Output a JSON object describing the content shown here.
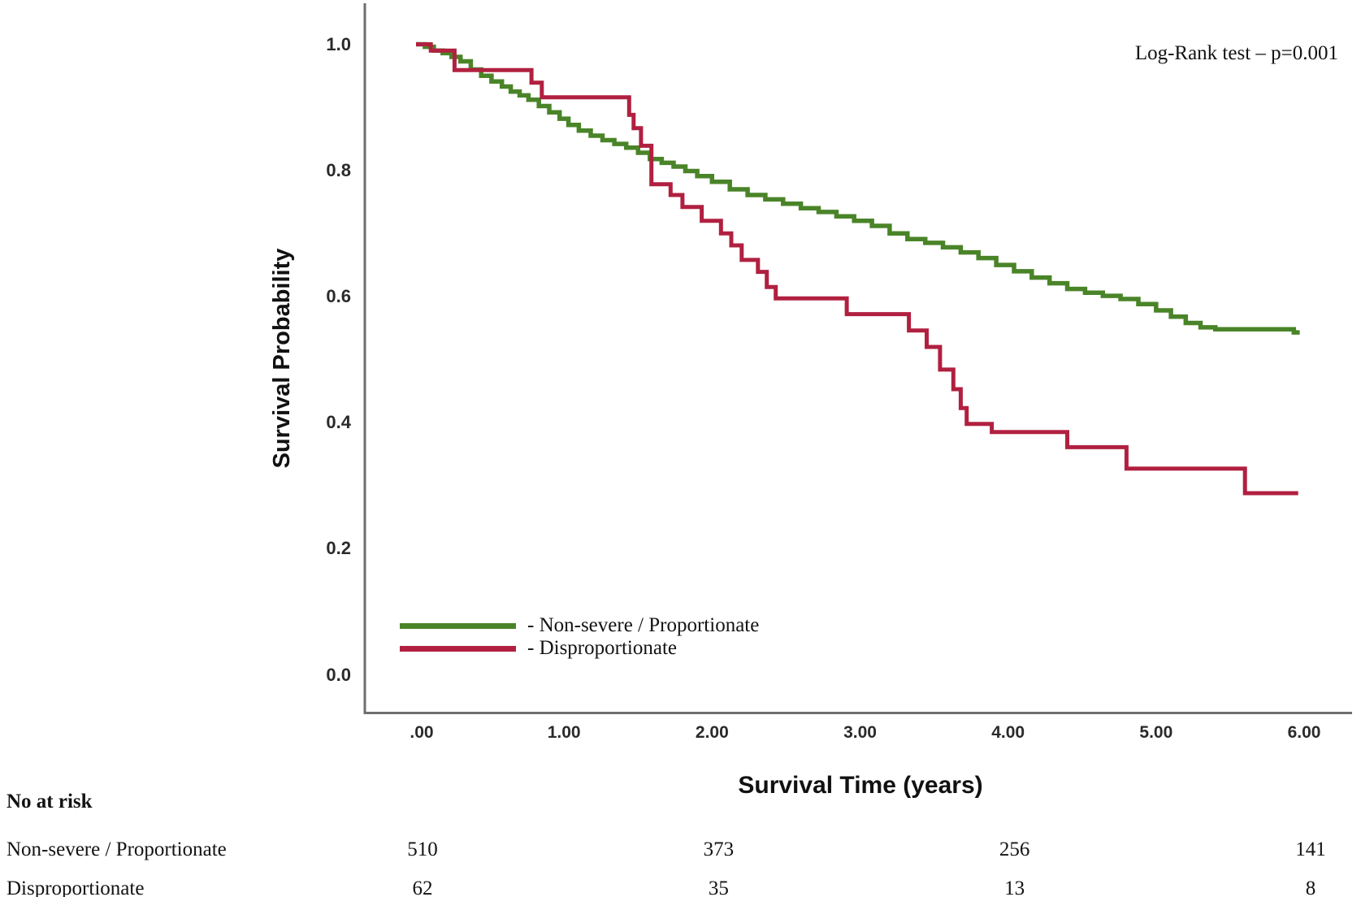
{
  "chart_data": {
    "type": "line",
    "subtype": "kaplan-meier-step",
    "title": "",
    "xlabel": "Survival Time (years)",
    "ylabel": "Survival Probability",
    "annotation": "Log-Rank test – p=0.001",
    "xlim": [
      0,
      6.35
    ],
    "ylim": [
      0,
      1.07
    ],
    "grid": false,
    "legend_position": "inside-bottom-left",
    "axis_color": "#6e6e6e",
    "x_ticks": [
      {
        "value": 0,
        "label": ".00"
      },
      {
        "value": 1,
        "label": "1.00"
      },
      {
        "value": 2,
        "label": "2.00"
      },
      {
        "value": 3,
        "label": "3.00"
      },
      {
        "value": 4,
        "label": "4.00"
      },
      {
        "value": 5,
        "label": "5.00"
      },
      {
        "value": 6,
        "label": "6.00"
      }
    ],
    "y_ticks": [
      {
        "value": 1.0,
        "label": "1.0"
      },
      {
        "value": 0.8,
        "label": "0.8"
      },
      {
        "value": 0.6,
        "label": "0.6"
      },
      {
        "value": 0.4,
        "label": "0.4"
      },
      {
        "value": 0.2,
        "label": "0.2"
      },
      {
        "value": 0.0,
        "label": "0.0"
      }
    ],
    "series": [
      {
        "name": "Non-severe / Proportionate",
        "legend_label": "- Non-severe / Proportionate",
        "color": "#4a8428",
        "points": [
          [
            0.0,
            1.0
          ],
          [
            0.06,
            0.996
          ],
          [
            0.12,
            0.99
          ],
          [
            0.18,
            0.986
          ],
          [
            0.24,
            0.98
          ],
          [
            0.3,
            0.973
          ],
          [
            0.37,
            0.96
          ],
          [
            0.44,
            0.95
          ],
          [
            0.51,
            0.941
          ],
          [
            0.58,
            0.933
          ],
          [
            0.64,
            0.925
          ],
          [
            0.7,
            0.919
          ],
          [
            0.76,
            0.912
          ],
          [
            0.83,
            0.902
          ],
          [
            0.9,
            0.892
          ],
          [
            0.97,
            0.882
          ],
          [
            1.03,
            0.872
          ],
          [
            1.1,
            0.863
          ],
          [
            1.18,
            0.855
          ],
          [
            1.26,
            0.848
          ],
          [
            1.34,
            0.842
          ],
          [
            1.42,
            0.836
          ],
          [
            1.5,
            0.828
          ],
          [
            1.58,
            0.818
          ],
          [
            1.66,
            0.812
          ],
          [
            1.74,
            0.806
          ],
          [
            1.82,
            0.799
          ],
          [
            1.9,
            0.791
          ],
          [
            2.0,
            0.782
          ],
          [
            2.12,
            0.77
          ],
          [
            2.24,
            0.761
          ],
          [
            2.36,
            0.754
          ],
          [
            2.48,
            0.747
          ],
          [
            2.6,
            0.74
          ],
          [
            2.72,
            0.734
          ],
          [
            2.84,
            0.727
          ],
          [
            2.96,
            0.72
          ],
          [
            3.08,
            0.712
          ],
          [
            3.2,
            0.7
          ],
          [
            3.32,
            0.691
          ],
          [
            3.44,
            0.685
          ],
          [
            3.56,
            0.678
          ],
          [
            3.68,
            0.67
          ],
          [
            3.8,
            0.661
          ],
          [
            3.92,
            0.65
          ],
          [
            4.04,
            0.64
          ],
          [
            4.16,
            0.63
          ],
          [
            4.28,
            0.621
          ],
          [
            4.4,
            0.612
          ],
          [
            4.52,
            0.606
          ],
          [
            4.64,
            0.601
          ],
          [
            4.76,
            0.596
          ],
          [
            4.88,
            0.588
          ],
          [
            5.0,
            0.578
          ],
          [
            5.1,
            0.568
          ],
          [
            5.2,
            0.558
          ],
          [
            5.3,
            0.551
          ],
          [
            5.4,
            0.548
          ],
          [
            5.93,
            0.543
          ],
          [
            5.97,
            0.543
          ]
        ]
      },
      {
        "name": "Disproportionate",
        "legend_label": "- Disproportionate",
        "color": "#b12040",
        "points": [
          [
            0.0,
            1.0
          ],
          [
            0.1,
            0.99
          ],
          [
            0.26,
            0.959
          ],
          [
            0.78,
            0.939
          ],
          [
            0.85,
            0.916
          ],
          [
            1.44,
            0.888
          ],
          [
            1.47,
            0.867
          ],
          [
            1.52,
            0.839
          ],
          [
            1.59,
            0.778
          ],
          [
            1.72,
            0.761
          ],
          [
            1.8,
            0.742
          ],
          [
            1.93,
            0.72
          ],
          [
            2.06,
            0.7
          ],
          [
            2.13,
            0.681
          ],
          [
            2.2,
            0.658
          ],
          [
            2.31,
            0.639
          ],
          [
            2.37,
            0.615
          ],
          [
            2.43,
            0.597
          ],
          [
            2.91,
            0.572
          ],
          [
            3.33,
            0.546
          ],
          [
            3.45,
            0.52
          ],
          [
            3.54,
            0.484
          ],
          [
            3.63,
            0.453
          ],
          [
            3.68,
            0.423
          ],
          [
            3.72,
            0.398
          ],
          [
            3.89,
            0.385
          ],
          [
            4.4,
            0.361
          ],
          [
            4.8,
            0.327
          ],
          [
            5.6,
            0.288
          ],
          [
            5.96,
            0.288
          ]
        ]
      }
    ]
  },
  "risk_table": {
    "title": "No at risk",
    "time_values": [
      0,
      2,
      4,
      6
    ],
    "rows": [
      {
        "label": "Non-severe / Proportionate",
        "counts": [
          "510",
          "373",
          "256",
          "141"
        ]
      },
      {
        "label": "Disproportionate",
        "counts": [
          "62",
          "35",
          "13",
          "8"
        ]
      }
    ]
  }
}
